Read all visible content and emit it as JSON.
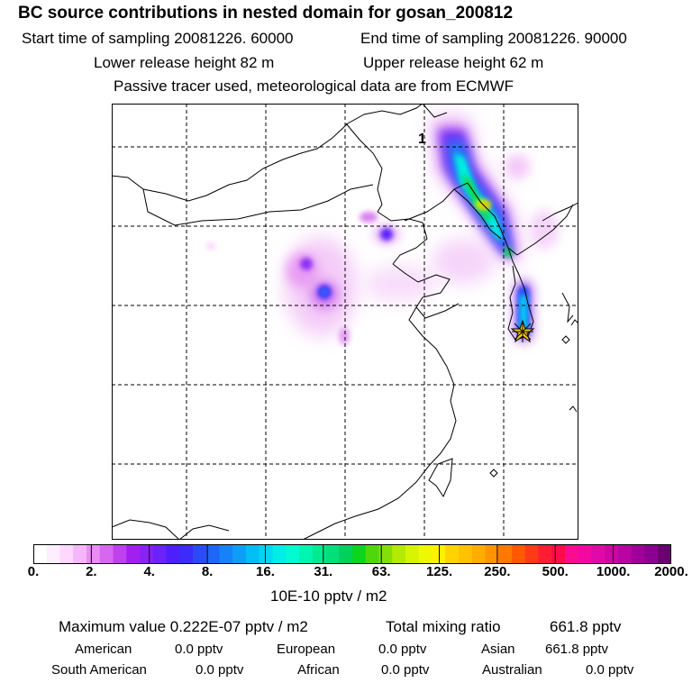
{
  "header": {
    "title": "BC  source contributions in nested domain for gosan_200812",
    "start_label": "Start time of sampling 20081226. 60000",
    "end_label": "End time of sampling 20081226. 90000",
    "lower_label": "Lower release height   82 m",
    "upper_label": "Upper release height   62 m",
    "tracer_note": "Passive tracer used, meteorological data are from ECMWF"
  },
  "map": {
    "marker_label": "1",
    "receptor_symbol": "star",
    "plumes": [
      {
        "name": "northeast-plume",
        "peak_level": 125
      },
      {
        "name": "korea-plume",
        "peak_level": 16
      },
      {
        "name": "inland-plume-1",
        "peak_level": 8
      },
      {
        "name": "inland-plume-2",
        "peak_level": 4
      }
    ]
  },
  "colorbar": {
    "units": "10E-10 pptv / m2",
    "tick_labels": [
      "0.",
      "2.",
      "4.",
      "8.",
      "16.",
      "31.",
      "63.",
      "125.",
      "250.",
      "500.",
      "1000.",
      "2000."
    ],
    "colors": [
      "#ffffff",
      "#ffeeff",
      "#ffd7ff",
      "#f6b6fb",
      "#e98cf4",
      "#d766f0",
      "#c040ee",
      "#a21ff0",
      "#8b22f5",
      "#6c22fa",
      "#4e1ffd",
      "#3b2cfb",
      "#2b4bfb",
      "#1d67f8",
      "#1682f9",
      "#0f9ef7",
      "#03bdf5",
      "#00d6f2",
      "#00eee8",
      "#00fad2",
      "#00f5b0",
      "#00ea92",
      "#00df7a",
      "#00d05c",
      "#0bd51d",
      "#4ed80b",
      "#82e007",
      "#b5ea04",
      "#d6f402",
      "#eef800",
      "#fff100",
      "#ffd300",
      "#ffc100",
      "#ffad00",
      "#ff9400",
      "#ff7800",
      "#ff5900",
      "#ff3a16",
      "#ff1d35",
      "#fd0b4a",
      "#fa0b8f",
      "#f308a4",
      "#e00aa8",
      "#cd06a4",
      "#b804a0",
      "#a2009b",
      "#8b0090",
      "#6c0071"
    ]
  },
  "stats": {
    "max_label": "Maximum value  0.222E-07 pptv / m2",
    "total_label": "Total mixing ratio",
    "total_value": "661.8 pptv",
    "regions": [
      {
        "name": "American",
        "value": "0.0 pptv"
      },
      {
        "name": "European",
        "value": "0.0 pptv"
      },
      {
        "name": "Asian",
        "value": "661.8 pptv"
      },
      {
        "name": "South American",
        "value": "0.0 pptv"
      },
      {
        "name": "African",
        "value": "0.0 pptv"
      },
      {
        "name": "Australian",
        "value": "0.0 pptv"
      }
    ]
  }
}
